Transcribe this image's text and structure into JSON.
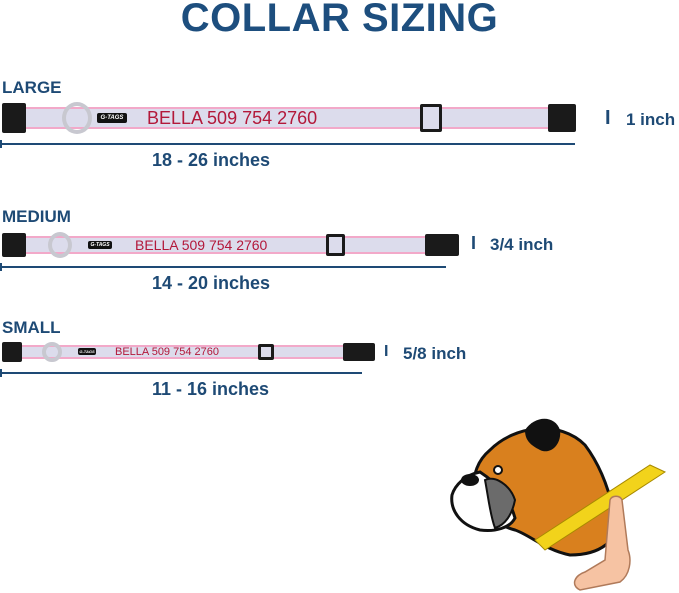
{
  "title": "COLLAR SIZING",
  "brand_tag": "G-TAGS",
  "colors": {
    "navy": "#1e4a75",
    "name_text": "#b3183a",
    "band_edge": "#f2a9c9",
    "band_fill": "#dcdcec"
  },
  "sizes": [
    {
      "label": "LARGE",
      "engraving": "BELLA 509 754 2760",
      "range": "18 - 26 inches",
      "width": "1 inch"
    },
    {
      "label": "MEDIUM",
      "engraving": "BELLA 509 754 2760",
      "range": "14 - 20 inches",
      "width": "3/4 inch"
    },
    {
      "label": "SMALL",
      "engraving": "BELLA 509 754 2760",
      "range": "11 - 16 inches",
      "width": "5/8 inch"
    }
  ]
}
